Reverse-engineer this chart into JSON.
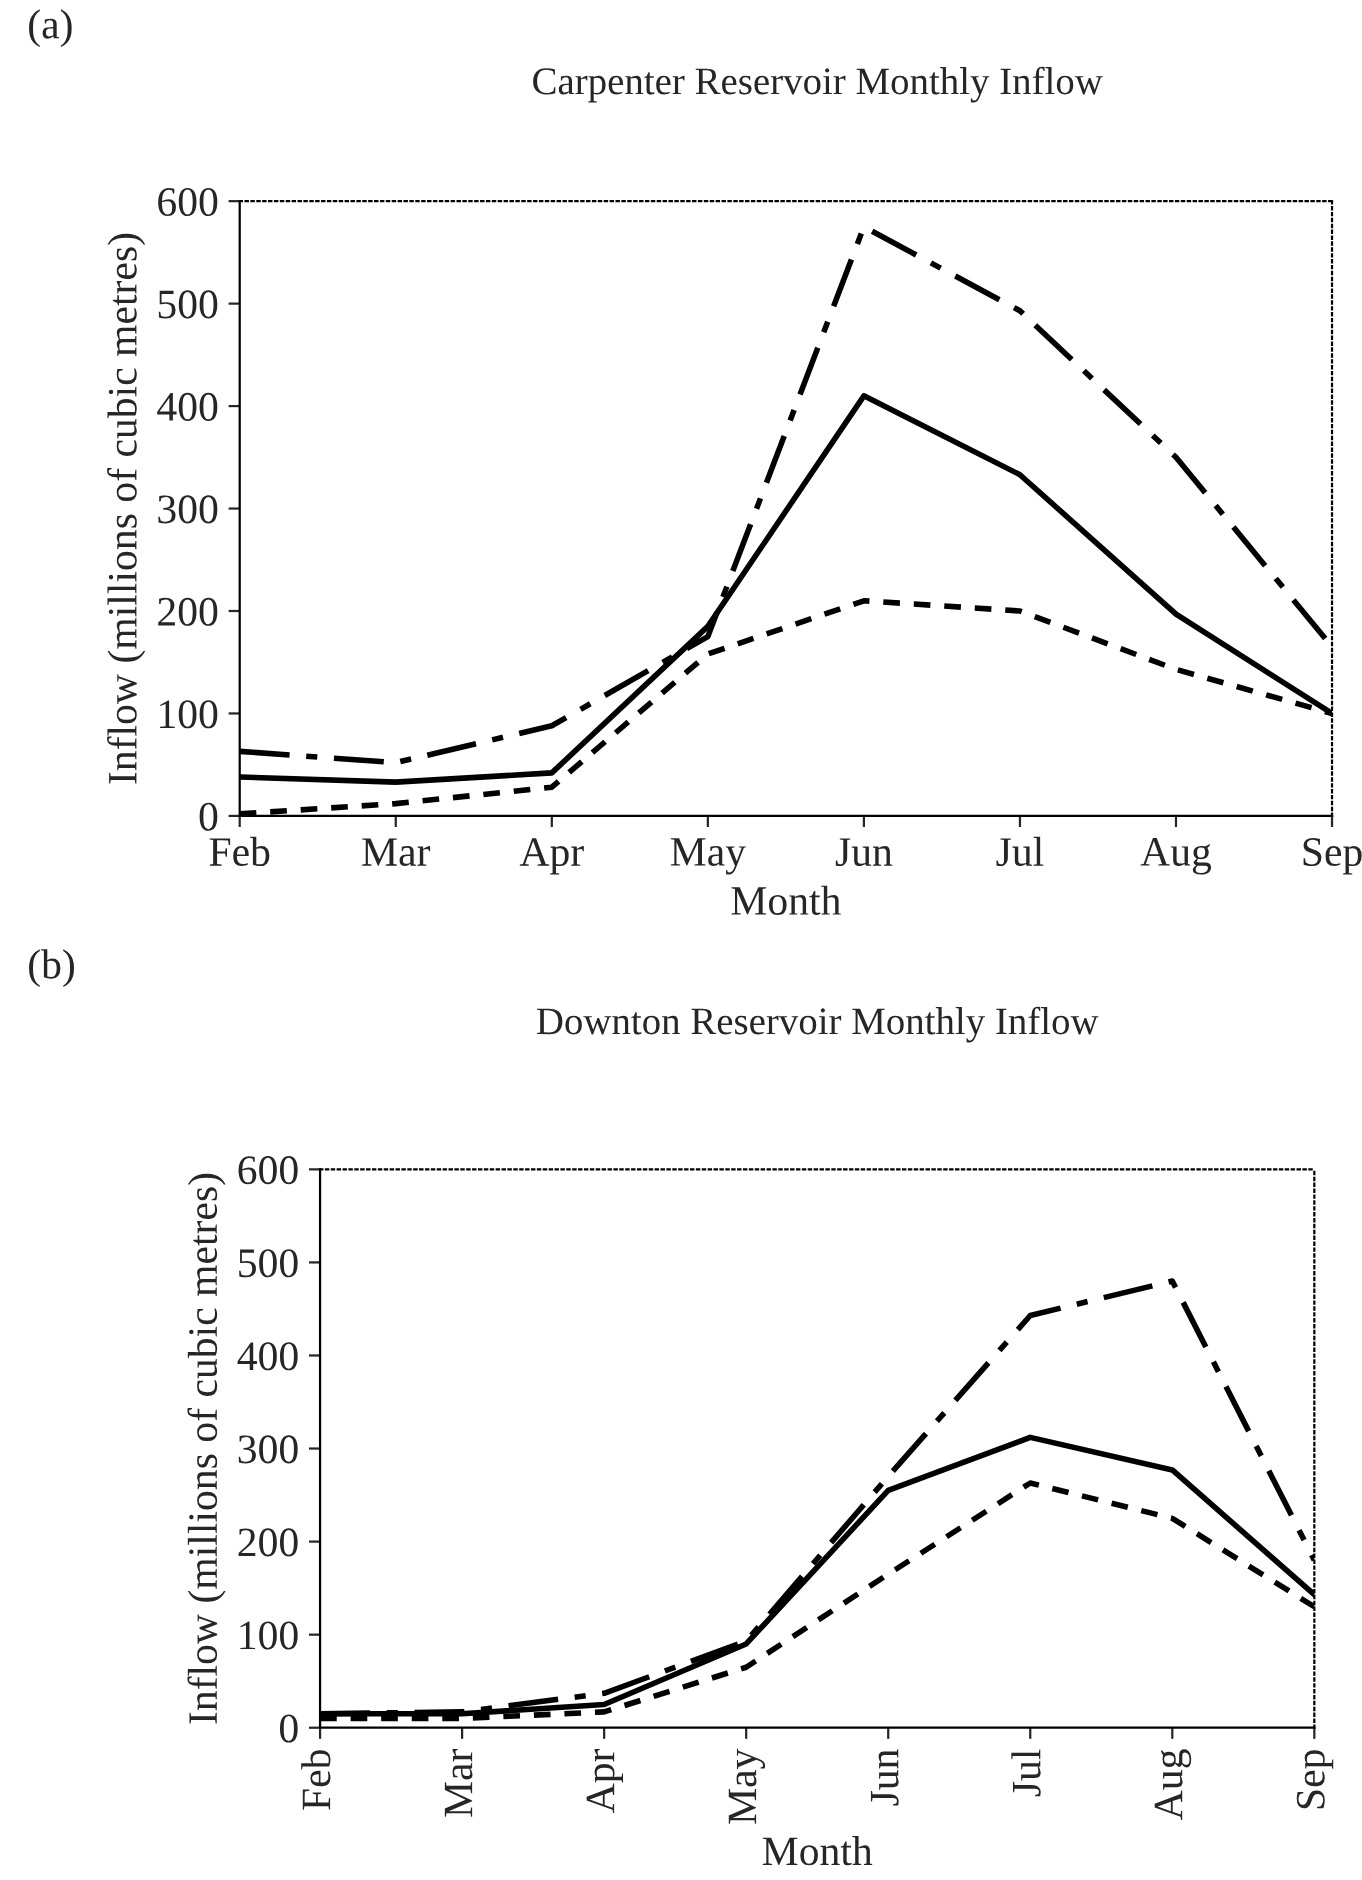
{
  "chart_data": [
    {
      "type": "line",
      "title": "Carpenter Reservoir Monthly Inflow",
      "xlabel": "Month",
      "ylabel": "Inflow (millions of cubic metres)",
      "annotations": [
        "(a)"
      ],
      "categories": [
        "Feb",
        "Mar",
        "Apr",
        "May",
        "Jun",
        "Jul",
        "Aug",
        "Sep"
      ],
      "series": [
        {
          "color": "#000000",
          "line_style": "solid",
          "values": [
            38,
            33,
            42,
            185,
            410,
            333,
            197,
            100
          ]
        },
        {
          "color": "#000000",
          "line_style": "dashed",
          "values": [
            63,
            52,
            88,
            175,
            575,
            493,
            350,
            165
          ]
        },
        {
          "color": "#000000",
          "line_style": "dotted",
          "values": [
            2,
            12,
            28,
            158,
            210,
            200,
            143,
            100
          ]
        }
      ],
      "ylim": [
        0,
        600
      ],
      "yticks": [
        0,
        100,
        200,
        300,
        400,
        500,
        600
      ],
      "grid": false,
      "legend": false,
      "marker": "none"
    },
    {
      "type": "line",
      "title": "Downton Reservoir Monthly Inflow",
      "xlabel": "Month",
      "ylabel": "Inflow (millions of cubic metres)",
      "annotations": [
        "(b)"
      ],
      "categories": [
        "Feb",
        "Mar",
        "Apr",
        "May",
        "Jun",
        "Jul",
        "Aug",
        "Sep"
      ],
      "series": [
        {
          "color": "#000000",
          "line_style": "solid",
          "values": [
            15,
            15,
            25,
            90,
            255,
            312,
            277,
            143
          ]
        },
        {
          "color": "#000000",
          "line_style": "dashed",
          "values": [
            15,
            17,
            37,
            93,
            270,
            443,
            480,
            180
          ]
        },
        {
          "color": "#000000",
          "line_style": "dotted",
          "values": [
            10,
            10,
            17,
            65,
            165,
            263,
            225,
            130
          ]
        }
      ],
      "ylim": [
        0,
        600
      ],
      "yticks": [
        0,
        100,
        200,
        300,
        400,
        500,
        600
      ],
      "grid": false,
      "legend": false,
      "marker": "none"
    }
  ]
}
